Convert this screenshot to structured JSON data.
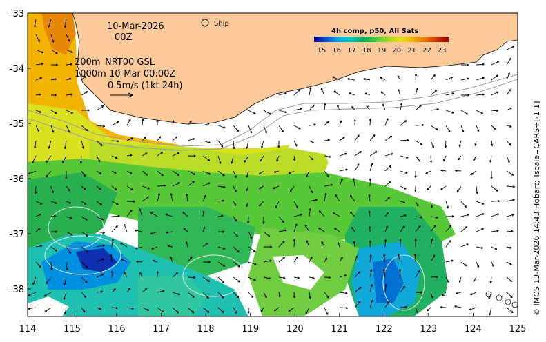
{
  "map": {
    "date_label": "10-Mar-2026",
    "hour_label": "00Z",
    "ship_label": "Ship",
    "depth_line_200": "200m",
    "depth_line_1000": "1000m",
    "model_label": "NRT00 GSL",
    "model_time": "10-Mar 00:00Z",
    "scale_label": "0.5m/s (1kt 24h)",
    "credit": "© IMOS 13-Mar-2026 14:43 Hobart; Tscale=CARS+[-1 1]",
    "colors": {
      "land": "#fcc99a",
      "no_data": "#ffffff",
      "coast": "#000000",
      "isobath": "#9a9a9a"
    }
  },
  "colorbar": {
    "title": "4h comp, p50, All Sats",
    "ticks": [
      "15",
      "16",
      "17",
      "18",
      "19",
      "20",
      "21",
      "22",
      "23"
    ],
    "range": [
      14.5,
      23.5
    ],
    "colors": [
      "#00008b",
      "#0050d0",
      "#00a8e6",
      "#00c8c0",
      "#00b060",
      "#40c840",
      "#a0d820",
      "#e8e010",
      "#f0b000",
      "#e87800",
      "#d03000",
      "#8b0000"
    ]
  },
  "axes": {
    "x_ticks": [
      "114",
      "115",
      "116",
      "117",
      "118",
      "119",
      "120",
      "121",
      "122",
      "123",
      "124",
      "125"
    ],
    "y_ticks": [
      "-33",
      "-34",
      "-35",
      "-36",
      "-37",
      "-38"
    ],
    "xlim": [
      114,
      125
    ],
    "ylim": [
      -38.5,
      -33
    ]
  }
}
